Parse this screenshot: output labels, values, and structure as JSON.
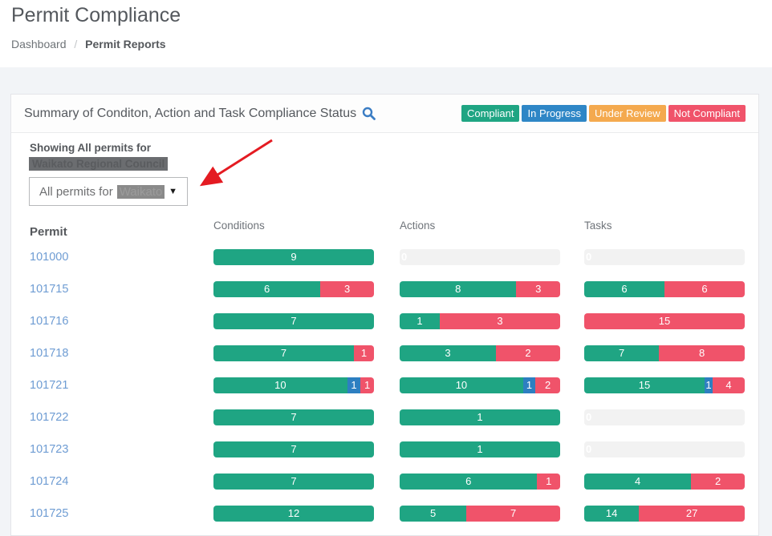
{
  "header": {
    "title": "Permit Compliance",
    "breadcrumb": {
      "home": "Dashboard",
      "separator": "/",
      "current": "Permit Reports"
    }
  },
  "panel": {
    "title": "Summary of Conditon, Action and Task Compliance Status",
    "search_icon": "magnifier-icon",
    "legend": [
      {
        "label": "Compliant",
        "color": "#1fa583"
      },
      {
        "label": "In Progress",
        "color": "#2e86c6"
      },
      {
        "label": "Under Review",
        "color": "#f4a94e"
      },
      {
        "label": "Not Compliant",
        "color": "#f0536a"
      }
    ],
    "filter": {
      "showing_label": "Showing All permits for",
      "showing_redacted": "Waikato Regional Council",
      "dropdown_text": "All permits for",
      "dropdown_redacted": "Waikato",
      "dropdown_caret": "▼"
    },
    "annotation": {
      "type": "red-arrow",
      "color": "#e41b22"
    }
  },
  "table": {
    "columns": {
      "permit": "Permit",
      "conditions": "Conditions",
      "actions": "Actions",
      "tasks": "Tasks"
    },
    "status_colors": {
      "compliant": "#1fa583",
      "in_progress": "#2d7fc1",
      "not_compliant": "#f0536a",
      "empty": "#f2f2f2"
    },
    "rows": [
      {
        "permit": "101000",
        "conditions": [
          {
            "value": 9,
            "status": "compliant"
          }
        ],
        "actions": [
          {
            "value": 0,
            "status": "empty"
          }
        ],
        "tasks": [
          {
            "value": 0,
            "status": "empty"
          }
        ]
      },
      {
        "permit": "101715",
        "conditions": [
          {
            "value": 6,
            "status": "compliant"
          },
          {
            "value": 3,
            "status": "not_compliant"
          }
        ],
        "actions": [
          {
            "value": 8,
            "status": "compliant"
          },
          {
            "value": 3,
            "status": "not_compliant"
          }
        ],
        "tasks": [
          {
            "value": 6,
            "status": "compliant"
          },
          {
            "value": 6,
            "status": "not_compliant"
          }
        ]
      },
      {
        "permit": "101716",
        "conditions": [
          {
            "value": 7,
            "status": "compliant"
          }
        ],
        "actions": [
          {
            "value": 1,
            "status": "compliant"
          },
          {
            "value": 3,
            "status": "not_compliant"
          }
        ],
        "tasks": [
          {
            "value": 15,
            "status": "not_compliant"
          }
        ]
      },
      {
        "permit": "101718",
        "conditions": [
          {
            "value": 7,
            "status": "compliant"
          },
          {
            "value": 1,
            "status": "not_compliant"
          }
        ],
        "actions": [
          {
            "value": 3,
            "status": "compliant"
          },
          {
            "value": 2,
            "status": "not_compliant"
          }
        ],
        "tasks": [
          {
            "value": 7,
            "status": "compliant"
          },
          {
            "value": 8,
            "status": "not_compliant"
          }
        ]
      },
      {
        "permit": "101721",
        "conditions": [
          {
            "value": 10,
            "status": "compliant"
          },
          {
            "value": 1,
            "status": "in_progress"
          },
          {
            "value": 1,
            "status": "not_compliant"
          }
        ],
        "actions": [
          {
            "value": 10,
            "status": "compliant"
          },
          {
            "value": 1,
            "status": "in_progress"
          },
          {
            "value": 2,
            "status": "not_compliant"
          }
        ],
        "tasks": [
          {
            "value": 15,
            "status": "compliant"
          },
          {
            "value": 1,
            "status": "in_progress"
          },
          {
            "value": 4,
            "status": "not_compliant"
          }
        ]
      },
      {
        "permit": "101722",
        "conditions": [
          {
            "value": 7,
            "status": "compliant"
          }
        ],
        "actions": [
          {
            "value": 1,
            "status": "compliant"
          }
        ],
        "tasks": [
          {
            "value": 0,
            "status": "empty"
          }
        ]
      },
      {
        "permit": "101723",
        "conditions": [
          {
            "value": 7,
            "status": "compliant"
          }
        ],
        "actions": [
          {
            "value": 1,
            "status": "compliant"
          }
        ],
        "tasks": [
          {
            "value": 0,
            "status": "empty"
          }
        ]
      },
      {
        "permit": "101724",
        "conditions": [
          {
            "value": 7,
            "status": "compliant"
          }
        ],
        "actions": [
          {
            "value": 6,
            "status": "compliant"
          },
          {
            "value": 1,
            "status": "not_compliant"
          }
        ],
        "tasks": [
          {
            "value": 4,
            "status": "compliant"
          },
          {
            "value": 2,
            "status": "not_compliant"
          }
        ]
      },
      {
        "permit": "101725",
        "conditions": [
          {
            "value": 12,
            "status": "compliant"
          }
        ],
        "actions": [
          {
            "value": 5,
            "status": "compliant"
          },
          {
            "value": 7,
            "status": "not_compliant"
          }
        ],
        "tasks": [
          {
            "value": 14,
            "status": "compliant"
          },
          {
            "value": 27,
            "status": "not_compliant"
          }
        ]
      }
    ]
  }
}
